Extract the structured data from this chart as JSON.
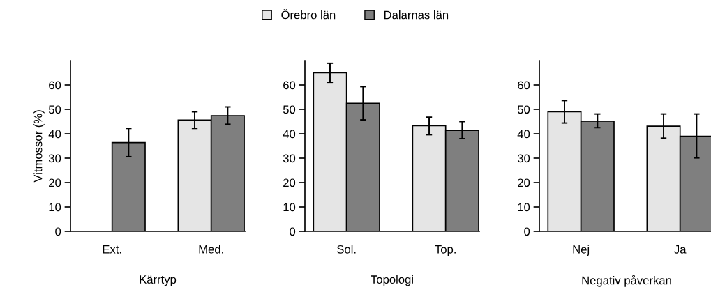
{
  "chart_data": [
    {
      "type": "bar",
      "xlabel": "Kärrtyp",
      "ylabel": "Vitmossor (%)",
      "categories": [
        "Ext.",
        "Med."
      ],
      "ylim": [
        0,
        70
      ],
      "yticks": [
        0,
        10,
        20,
        30,
        40,
        50,
        60
      ],
      "legend": "top",
      "series": [
        {
          "name": "Örebro län",
          "color": "#e5e5e5",
          "values": [
            null,
            45.6
          ],
          "errors": [
            null,
            [
              42.2,
              49.0
            ]
          ]
        },
        {
          "name": "Dalarnas län",
          "color": "#7f7f7f",
          "values": [
            36.4,
            47.4
          ],
          "errors": [
            [
              30.6,
              42.2
            ],
            [
              43.9,
              51.0
            ]
          ]
        }
      ]
    },
    {
      "type": "bar",
      "xlabel": "Topologi",
      "categories": [
        "Sol.",
        "Top."
      ],
      "ylim": [
        0,
        70
      ],
      "yticks": [
        0,
        10,
        20,
        30,
        40,
        50,
        60
      ],
      "series": [
        {
          "color": "#e5e5e5",
          "values": [
            65.0,
            43.3
          ],
          "errors": [
            [
              61.1,
              68.9
            ],
            [
              39.6,
              46.8
            ]
          ]
        },
        {
          "color": "#7f7f7f",
          "values": [
            52.5,
            41.4
          ],
          "errors": [
            [
              45.7,
              59.3
            ],
            [
              38.0,
              45.0
            ]
          ]
        }
      ]
    },
    {
      "type": "bar",
      "xlabel": "Negativ påverkan",
      "categories": [
        "Nej",
        "Ja"
      ],
      "ylim": [
        0,
        70
      ],
      "yticks": [
        0,
        10,
        20,
        30,
        40,
        50,
        60
      ],
      "series": [
        {
          "color": "#e5e5e5",
          "values": [
            49.0,
            43.1
          ],
          "errors": [
            [
              44.4,
              53.6
            ],
            [
              38.2,
              48.1
            ]
          ]
        },
        {
          "color": "#7f7f7f",
          "values": [
            45.2,
            39.0
          ],
          "errors": [
            [
              42.5,
              48.1
            ],
            [
              30.1,
              48.1
            ]
          ]
        }
      ]
    }
  ]
}
